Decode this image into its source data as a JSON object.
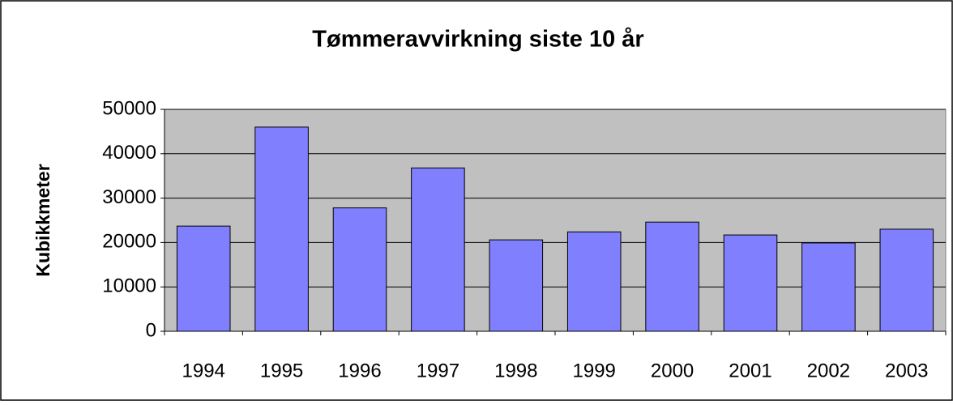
{
  "chart_data": {
    "type": "bar",
    "title": "Tømmeravvirkning siste 10 år",
    "y_label": "Kubikkmeter",
    "categories": [
      "1994",
      "1995",
      "1996",
      "1997",
      "1998",
      "1999",
      "2000",
      "2001",
      "2002",
      "2003"
    ],
    "values": [
      23700,
      46000,
      27800,
      36800,
      20600,
      22400,
      24600,
      21700,
      19900,
      23000
    ],
    "color": "#8080ff",
    "ylim": [
      0,
      50000
    ],
    "yticks": [
      0,
      10000,
      20000,
      30000,
      40000,
      50000
    ],
    "grid": true
  }
}
